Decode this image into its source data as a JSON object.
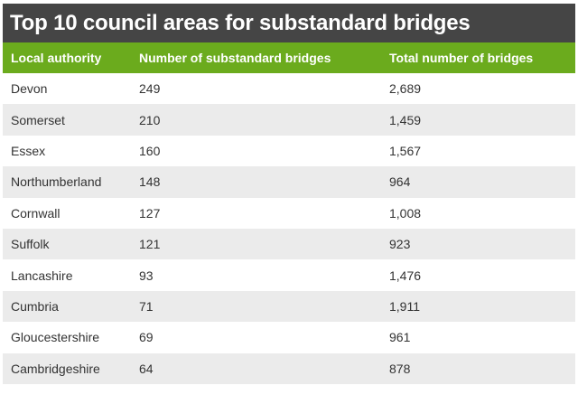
{
  "chart_data": {
    "type": "table",
    "title": "Top 10 council areas for substandard bridges",
    "columns": [
      "Local authority",
      "Number of substandard bridges",
      "Total number of bridges"
    ],
    "rows": [
      [
        "Devon",
        "249",
        "2,689"
      ],
      [
        "Somerset",
        "210",
        "1,459"
      ],
      [
        "Essex",
        "160",
        "1,567"
      ],
      [
        "Northumberland",
        "148",
        "964"
      ],
      [
        "Cornwall",
        "127",
        "1,008"
      ],
      [
        "Suffolk",
        "121",
        "923"
      ],
      [
        "Lancashire",
        "93",
        "1,476"
      ],
      [
        "Cumbria",
        "71",
        "1,911"
      ],
      [
        "Gloucestershire",
        "69",
        "961"
      ],
      [
        "Cambridgeshire",
        "64",
        "878"
      ]
    ]
  },
  "colors": {
    "title_background": "#454545",
    "header_background": "#6bab1d",
    "row_alt_background": "#ebebeb",
    "text": "#333333"
  }
}
